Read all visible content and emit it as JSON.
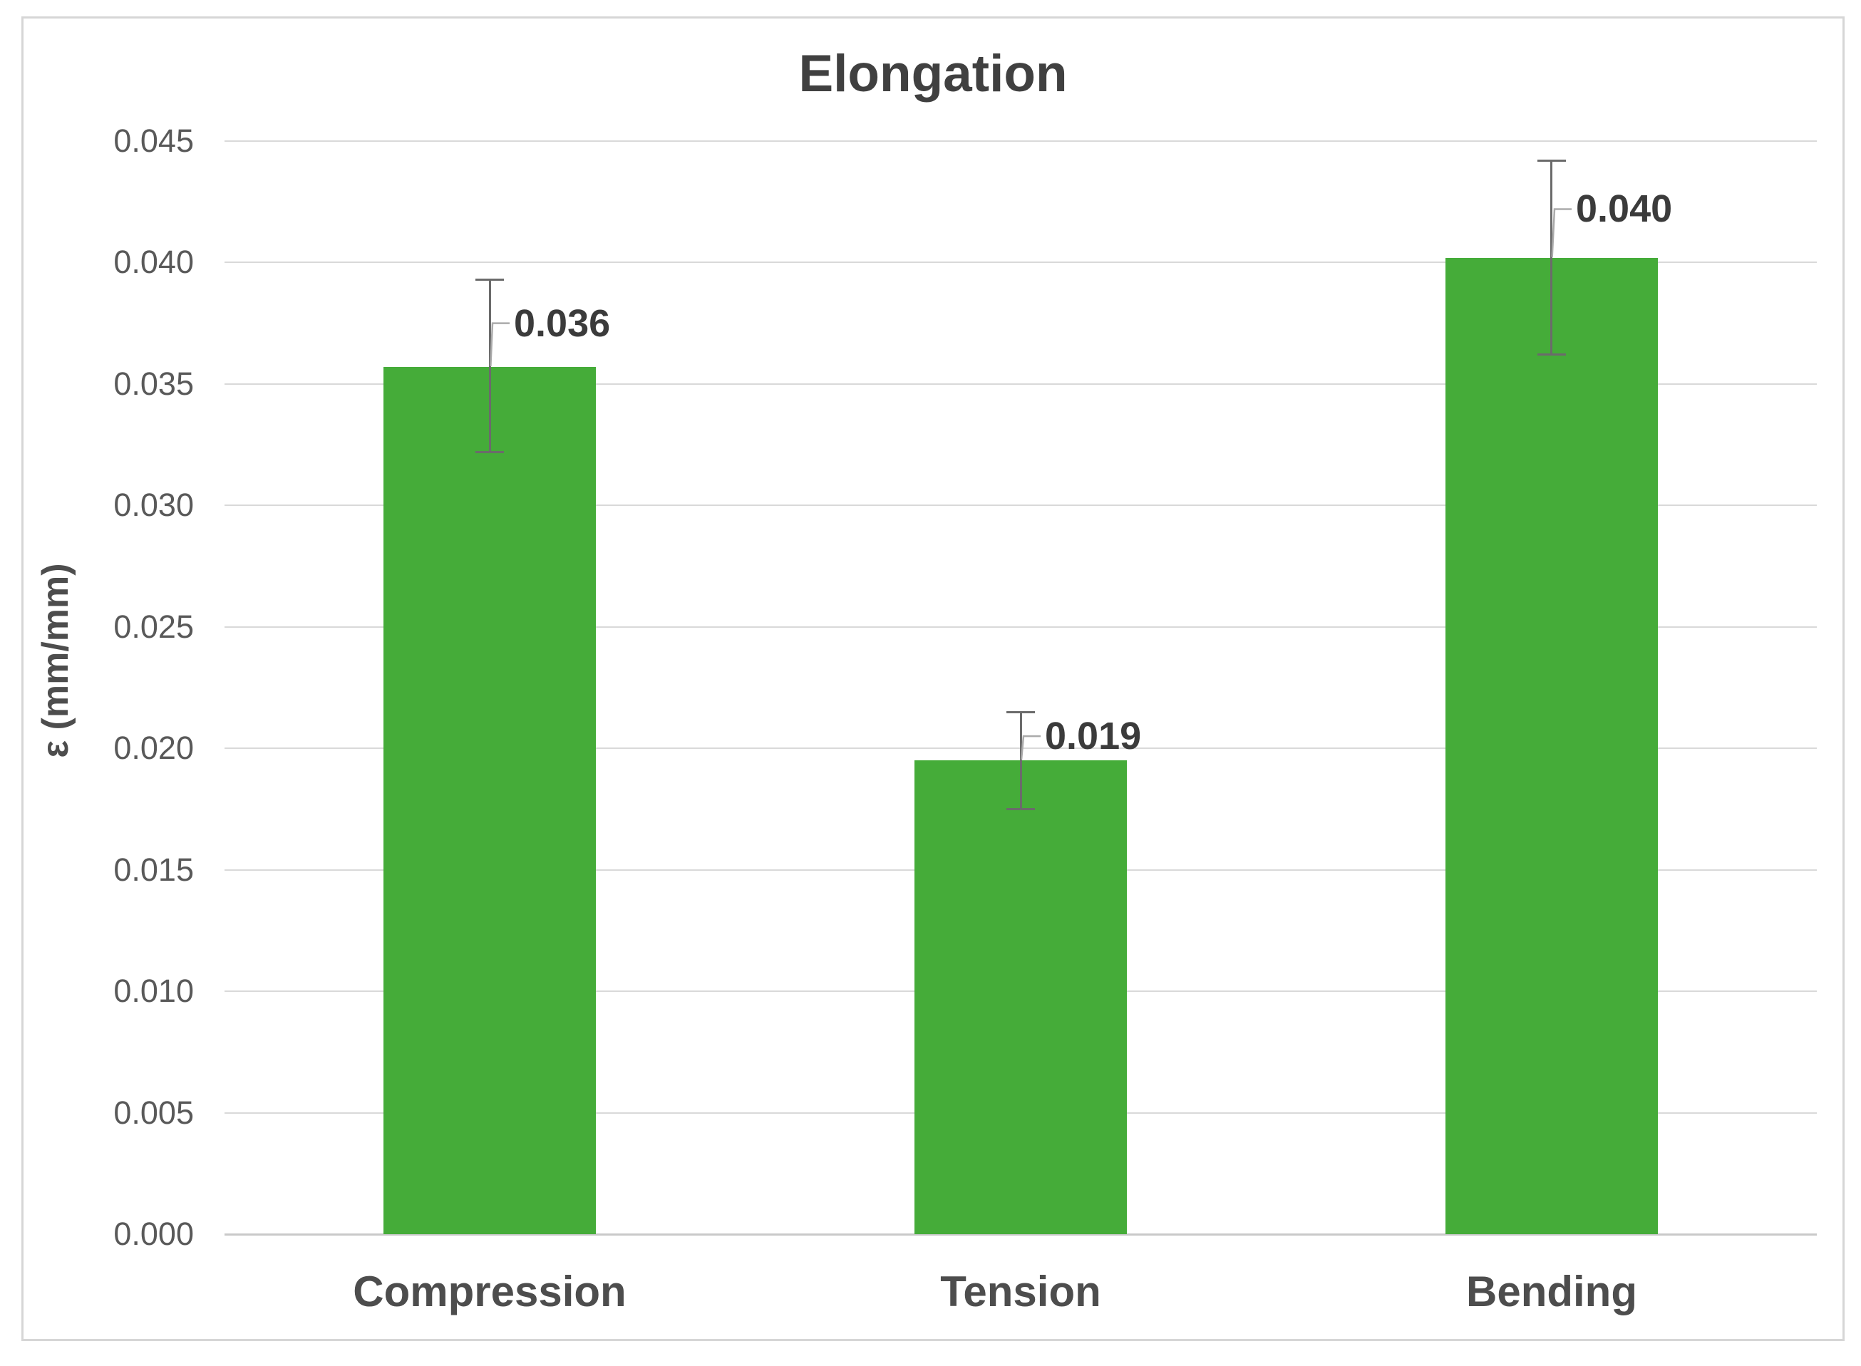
{
  "chart_data": {
    "type": "bar",
    "title": "Elongation",
    "ylabel": "ε (mm/mm)",
    "xlabel": "",
    "categories": [
      "Compression",
      "Tension",
      "Bending"
    ],
    "series": [
      {
        "name": "Elongation",
        "values": [
          0.0357,
          0.0195,
          0.0402
        ]
      }
    ],
    "data_labels": [
      "0.036",
      "0.019",
      "0.040"
    ],
    "error_bars_plus": [
      0.0036,
      0.002,
      0.004
    ],
    "error_bars_minus": [
      0.0035,
      0.002,
      0.004
    ],
    "ylim": [
      0,
      0.045
    ],
    "ytick_step": 0.005,
    "yticks": [
      "0.045",
      "0.040",
      "0.035",
      "0.030",
      "0.025",
      "0.020",
      "0.015",
      "0.010",
      "0.005",
      "0.000"
    ],
    "grid": true,
    "legend": "none"
  },
  "colors": {
    "bar": "#45AC39",
    "gridline": "#d9d9d9",
    "axis_line": "#c9c9c9",
    "frame_border": "#d6d6d6",
    "title_text": "#404040",
    "tick_text": "#595959",
    "category_text": "#4d4d4d",
    "data_label_text": "#3b3b3b",
    "error_bar": "#6b6b6b",
    "leader_line": "#ababab",
    "background": "#ffffff"
  }
}
